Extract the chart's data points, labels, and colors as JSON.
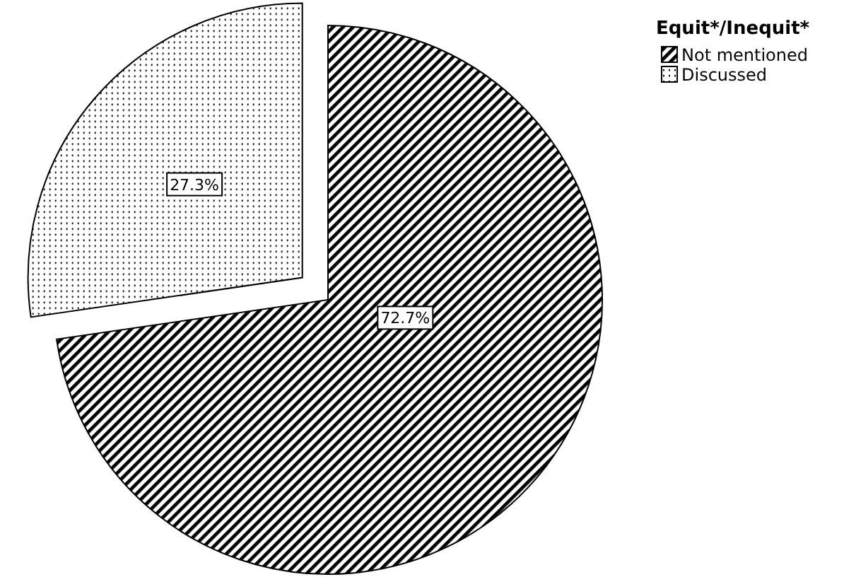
{
  "chart_data": {
    "type": "pie",
    "legend_title": "Equit*/Inequit*",
    "categories": [
      "Not mentioned",
      "Discussed"
    ],
    "values": [
      72.7,
      27.3
    ],
    "colors": [
      "#000000",
      "#000000"
    ],
    "value_labels": [
      "72.7%",
      "27.3%"
    ],
    "legend": "top right"
  }
}
